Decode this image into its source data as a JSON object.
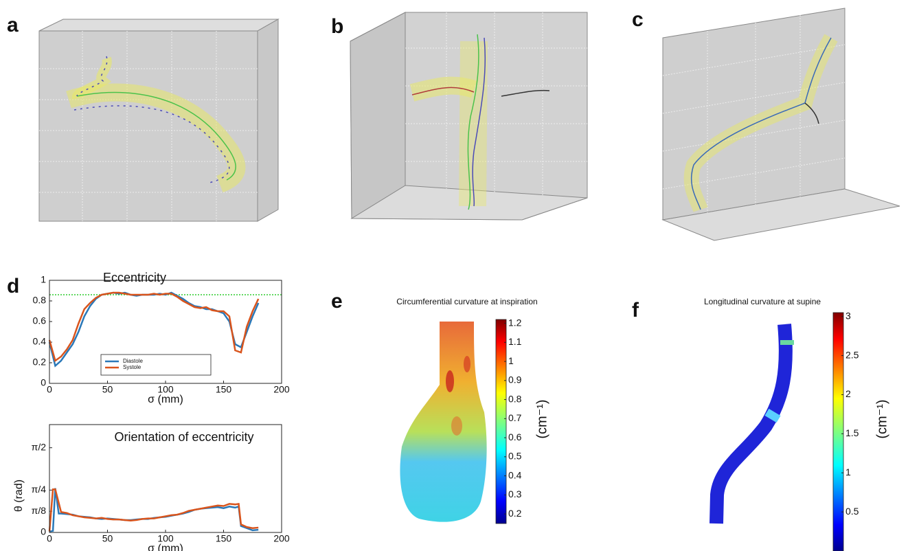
{
  "panel_labels": [
    "a",
    "b",
    "c",
    "d",
    "e",
    "f"
  ],
  "chart_data": [
    {
      "type": "line",
      "title": "Eccentricity",
      "xlabel": "σ (mm)",
      "legend": "center",
      "xlim": [
        0,
        200
      ],
      "xticks": [
        0,
        50,
        100,
        150,
        200
      ],
      "ylim": [
        0,
        1
      ],
      "yticks": [
        0,
        0.2,
        0.4,
        0.6,
        0.8,
        1
      ],
      "reference_line": {
        "value": 0.86,
        "color": "#2ecc2e"
      },
      "x": [
        0,
        5,
        10,
        15,
        20,
        25,
        30,
        35,
        40,
        45,
        50,
        55,
        60,
        65,
        70,
        75,
        80,
        85,
        90,
        95,
        100,
        105,
        110,
        115,
        120,
        125,
        130,
        135,
        140,
        145,
        150,
        155,
        160,
        165,
        170,
        175,
        180
      ],
      "series": [
        {
          "name": "Diastole",
          "color": "#2a78b8",
          "values": [
            0.4,
            0.17,
            0.22,
            0.3,
            0.38,
            0.5,
            0.65,
            0.75,
            0.82,
            0.86,
            0.87,
            0.88,
            0.87,
            0.88,
            0.86,
            0.85,
            0.86,
            0.86,
            0.86,
            0.87,
            0.86,
            0.88,
            0.85,
            0.82,
            0.78,
            0.75,
            0.74,
            0.72,
            0.72,
            0.7,
            0.68,
            0.6,
            0.38,
            0.35,
            0.5,
            0.65,
            0.78
          ]
        },
        {
          "name": "Systole",
          "color": "#d9541c",
          "values": [
            0.42,
            0.22,
            0.26,
            0.33,
            0.42,
            0.58,
            0.72,
            0.78,
            0.83,
            0.86,
            0.87,
            0.88,
            0.88,
            0.87,
            0.86,
            0.86,
            0.86,
            0.86,
            0.87,
            0.86,
            0.87,
            0.87,
            0.84,
            0.8,
            0.77,
            0.74,
            0.73,
            0.74,
            0.71,
            0.7,
            0.7,
            0.65,
            0.32,
            0.3,
            0.55,
            0.7,
            0.82
          ]
        }
      ]
    },
    {
      "type": "line",
      "title": "Orientation of eccentricity",
      "xlabel": "σ (mm)",
      "ylabel": "θ (rad)",
      "xlim": [
        0,
        200
      ],
      "xticks": [
        0,
        50,
        100,
        150,
        200
      ],
      "ylim": [
        0,
        2.0
      ],
      "yticks": [
        0,
        {
          "value": 0.3927,
          "label": "π/8"
        },
        {
          "value": 0.7854,
          "label": "π/4"
        },
        {
          "value": 1.5708,
          "label": "π/2"
        }
      ],
      "x": [
        0,
        3,
        5,
        8,
        10,
        15,
        20,
        25,
        30,
        35,
        40,
        45,
        50,
        55,
        60,
        65,
        70,
        75,
        80,
        85,
        90,
        95,
        100,
        105,
        110,
        115,
        120,
        125,
        130,
        135,
        140,
        145,
        150,
        155,
        160,
        163,
        165,
        170,
        175,
        180
      ],
      "series": [
        {
          "color": "#2a78b8",
          "values": [
            0.02,
            0.03,
            0.82,
            0.35,
            0.35,
            0.34,
            0.33,
            0.3,
            0.29,
            0.28,
            0.26,
            0.25,
            0.26,
            0.25,
            0.24,
            0.23,
            0.23,
            0.24,
            0.25,
            0.25,
            0.27,
            0.28,
            0.29,
            0.31,
            0.33,
            0.35,
            0.38,
            0.42,
            0.44,
            0.45,
            0.46,
            0.47,
            0.45,
            0.48,
            0.46,
            0.48,
            0.12,
            0.08,
            0.04,
            0.05
          ]
        },
        {
          "color": "#d9541c",
          "values": [
            0.02,
            0.8,
            0.8,
            0.55,
            0.38,
            0.36,
            0.32,
            0.3,
            0.28,
            0.27,
            0.26,
            0.27,
            0.25,
            0.24,
            0.24,
            0.23,
            0.22,
            0.23,
            0.25,
            0.26,
            0.26,
            0.28,
            0.3,
            0.32,
            0.33,
            0.36,
            0.4,
            0.42,
            0.44,
            0.46,
            0.48,
            0.5,
            0.49,
            0.53,
            0.52,
            0.53,
            0.15,
            0.1,
            0.08,
            0.09
          ]
        }
      ]
    },
    {
      "type": "colorbar",
      "title": "Circumferential curvature at inspiration",
      "label": "(cm⁻¹)",
      "colormap": "jet",
      "ylim": [
        0.15,
        1.22
      ],
      "yticks": [
        0.2,
        0.3,
        0.4,
        0.5,
        0.6,
        0.7,
        0.8,
        0.9,
        1,
        1.1,
        1.2
      ]
    },
    {
      "type": "colorbar",
      "title": "Longitudinal curvature at supine",
      "label": "(cm⁻¹)",
      "colormap": "jet",
      "ylim": [
        0,
        3.05
      ],
      "yticks": [
        0.5,
        1,
        1.5,
        2,
        2.5,
        3
      ]
    }
  ]
}
